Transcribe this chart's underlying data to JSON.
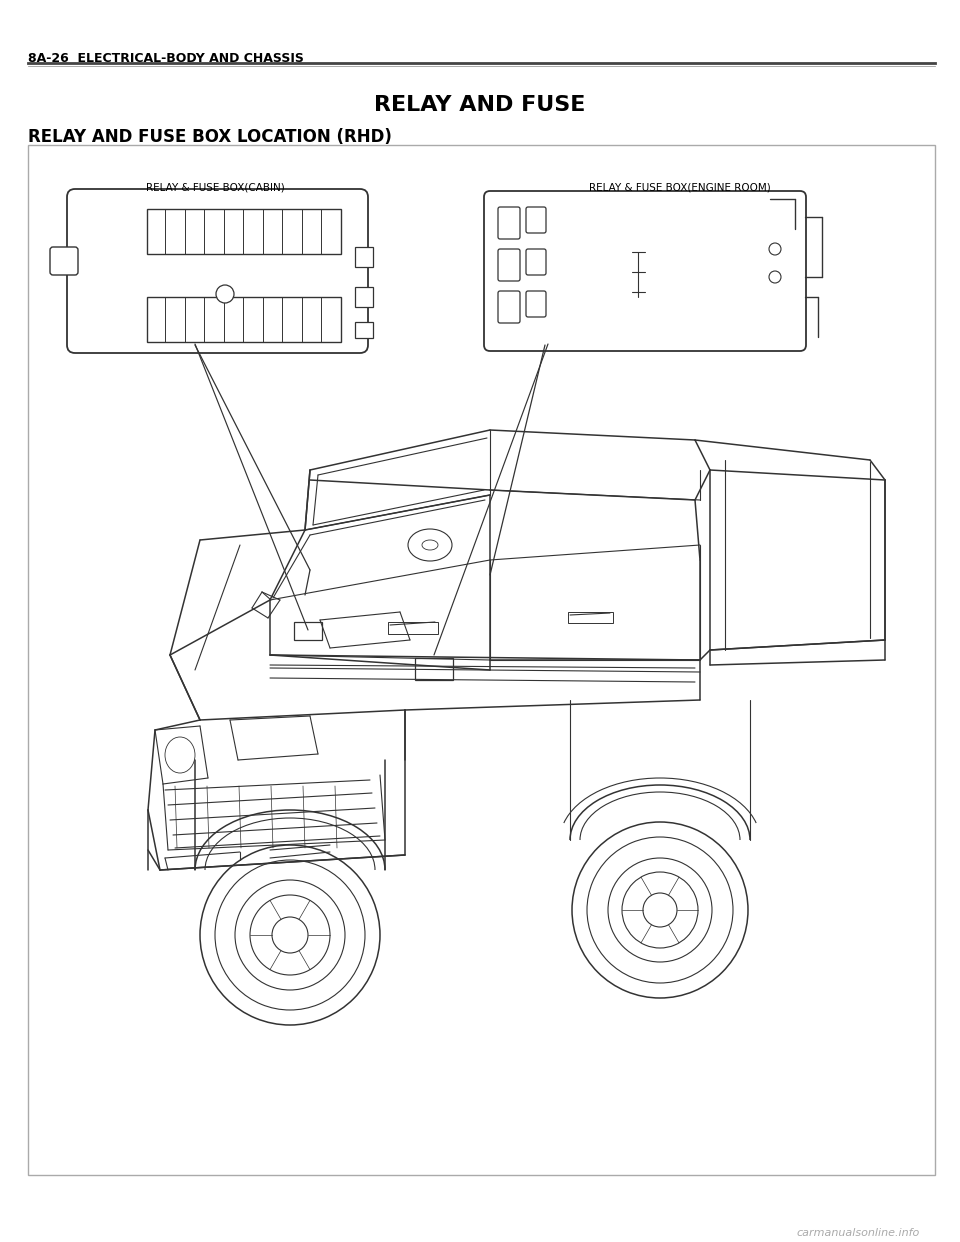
{
  "page_bg": "#ffffff",
  "header_text": "8A-26  ELECTRICAL-BODY AND CHASSIS",
  "header_line_color": "#555555",
  "title": "RELAY AND FUSE",
  "subtitle": "RELAY AND FUSE BOX LOCATION (RHD)",
  "label_cabin": "RELAY & FUSE BOX(CABIN)",
  "label_engine": "RELAY & FUSE BOX(ENGINE ROOM)",
  "watermark": "carmanualsonline.info",
  "line_color": "#333333",
  "light_line": "#888888",
  "text_color": "#000000",
  "header_fontsize": 9,
  "title_fontsize": 16,
  "subtitle_fontsize": 12,
  "label_fontsize": 7.5,
  "fig_w": 9.6,
  "fig_h": 12.42,
  "dpi": 100
}
